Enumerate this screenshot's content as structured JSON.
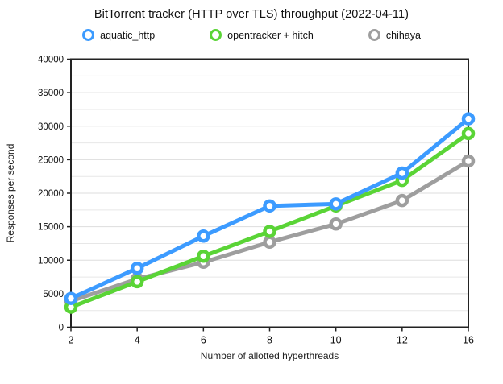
{
  "title": "BitTorrent tracker (HTTP over TLS) throughput (2022-04-11)",
  "legend": {
    "items": [
      {
        "label": "aquatic_http",
        "color": "#3C9BFF"
      },
      {
        "label": "opentracker + hitch",
        "color": "#5AD436"
      },
      {
        "label": "chihaya",
        "color": "#9E9E9E"
      }
    ]
  },
  "chart_data": {
    "type": "line",
    "title": "BitTorrent tracker (HTTP over TLS) throughput (2022-04-11)",
    "xlabel": "Number of allotted hyperthreads",
    "ylabel": "Responses per second",
    "categories": [
      "2",
      "4",
      "6",
      "8",
      "10",
      "12",
      "16"
    ],
    "series": [
      {
        "name": "aquatic_http",
        "color": "#3C9BFF",
        "values": [
          4300,
          8800,
          13600,
          18100,
          18400,
          23000,
          31100
        ]
      },
      {
        "name": "opentracker + hitch",
        "color": "#5AD436",
        "values": [
          3000,
          6800,
          10600,
          14300,
          18100,
          21900,
          28900
        ]
      },
      {
        "name": "chihaya",
        "color": "#9E9E9E",
        "values": [
          3900,
          7200,
          9700,
          12700,
          15400,
          18900,
          24800
        ]
      }
    ],
    "ylim": [
      0,
      40000
    ],
    "yticks": [
      0,
      5000,
      10000,
      15000,
      20000,
      25000,
      30000,
      35000,
      40000
    ],
    "ytick_step": 5000,
    "minor_gridline_step": 2500,
    "grid": true,
    "legend_position": "top",
    "marker_style": "open-circle",
    "colors": {
      "axis_border": "#222222",
      "major_gridline": "#dddddd",
      "minor_gridline": "#e7e7e7",
      "tick_label": "#111111",
      "axis_title": "#222222"
    }
  }
}
